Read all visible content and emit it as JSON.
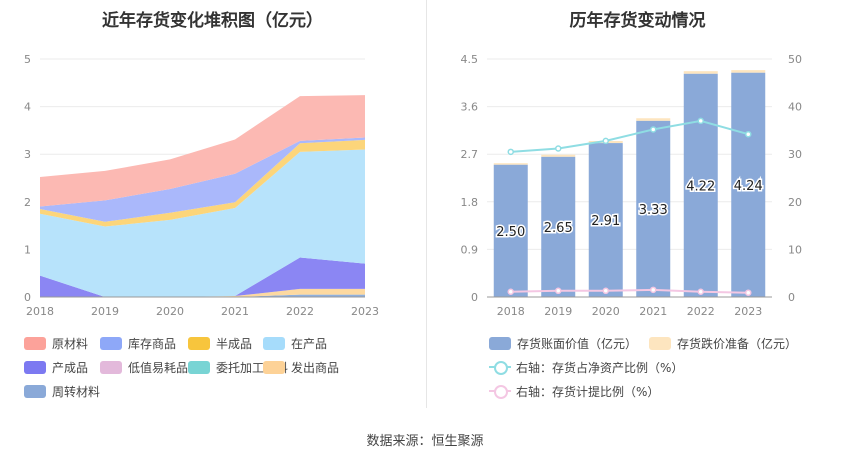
{
  "source": "数据来源：恒生聚源",
  "chart_data": [
    {
      "type": "area",
      "stacked": true,
      "title": "近年存货变化堆积图（亿元）",
      "x": [
        "2018",
        "2019",
        "2020",
        "2021",
        "2022",
        "2023"
      ],
      "ylim": [
        0,
        5
      ],
      "yticks": [
        "0",
        "1",
        "2",
        "3",
        "4",
        "5"
      ],
      "series": [
        {
          "name": "周转材料",
          "color": "#8fb0dd",
          "values": [
            0,
            0,
            0,
            0,
            0.05,
            0.05
          ]
        },
        {
          "name": "发出商品",
          "color": "#fdd9a0",
          "values": [
            0,
            0,
            0,
            0.02,
            0.12,
            0.12
          ]
        },
        {
          "name": "委托加工材料",
          "color": "#7fd8d8",
          "values": [
            0,
            0,
            0,
            0,
            0,
            0
          ]
        },
        {
          "name": "低值易耗品",
          "color": "#e6bce0",
          "values": [
            0,
            0,
            0,
            0,
            0,
            0
          ]
        },
        {
          "name": "产成品",
          "color": "#8b86f3",
          "values": [
            0.45,
            0,
            0,
            0,
            0.66,
            0.53
          ]
        },
        {
          "name": "在产品",
          "color": "#b7e3fb",
          "values": [
            1.3,
            1.48,
            1.62,
            1.85,
            2.22,
            2.4
          ]
        },
        {
          "name": "半成品",
          "color": "#fcd57a",
          "values": [
            0.1,
            0.1,
            0.15,
            0.12,
            0.18,
            0.2
          ]
        },
        {
          "name": "库存商品",
          "color": "#aab8fb",
          "values": [
            0.05,
            0.45,
            0.5,
            0.6,
            0.05,
            0.05
          ]
        },
        {
          "name": "原材料",
          "color": "#fcb9b3",
          "values": [
            0.62,
            0.62,
            0.62,
            0.72,
            0.94,
            0.89
          ]
        }
      ],
      "legend_order": [
        "原材料",
        "库存商品",
        "半成品",
        "在产品",
        "产成品",
        "低值易耗品",
        "委托加工材料",
        "发出商品",
        "周转材料"
      ],
      "legend_colors": [
        "#fca29a",
        "#8ea8f8",
        "#f7c53d",
        "#a6dcfb",
        "#7c79f1",
        "#e3b9db",
        "#78d4d4",
        "#fdd297",
        "#8aa9d8"
      ]
    },
    {
      "type": "bar",
      "title": "历年存货变动情况",
      "categories": [
        "2018",
        "2019",
        "2020",
        "2021",
        "2022",
        "2023"
      ],
      "ylim": [
        0,
        4.5
      ],
      "yticks": [
        "0",
        "0.9",
        "1.8",
        "2.7",
        "3.6",
        "4.5"
      ],
      "y2lim": [
        0,
        50
      ],
      "y2ticks": [
        "0",
        "10",
        "20",
        "30",
        "40",
        "50"
      ],
      "series": [
        {
          "name": "存货账面价值（亿元）",
          "color": "#8aa9d8",
          "values": [
            2.5,
            2.65,
            2.91,
            3.33,
            4.22,
            4.24
          ],
          "labels": [
            "2.50",
            "2.65",
            "2.91",
            "3.33",
            "4.22",
            "4.24"
          ]
        },
        {
          "name": "存货跌价准备（亿元）",
          "color": "#fde5bf",
          "values": [
            0.03,
            0.04,
            0.04,
            0.05,
            0.05,
            0.05
          ]
        },
        {
          "name": "右轴：存货占净资产比例（%）",
          "color": "#8fdde3",
          "axis": "right",
          "values": [
            30.5,
            31.2,
            32.8,
            35.2,
            37.0,
            34.2
          ]
        },
        {
          "name": "右轴：存货计提比例（%）",
          "color": "#f4c7e3",
          "axis": "right",
          "values": [
            1.1,
            1.3,
            1.3,
            1.5,
            1.1,
            0.9
          ]
        }
      ]
    }
  ]
}
